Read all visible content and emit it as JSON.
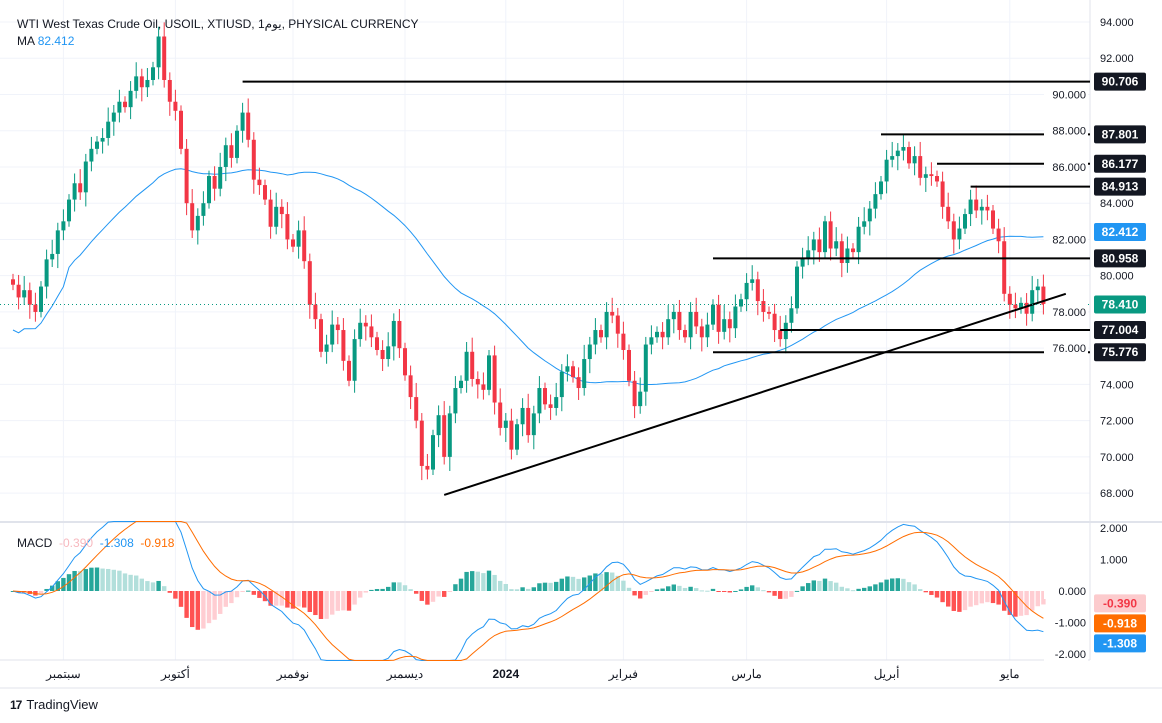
{
  "header": {
    "title": "WTI West Texas Crude Oil, USOIL, XTIUSD, 1يوم, PHYSICAL CURRENCY",
    "ma_label": "MA",
    "ma_value": "82.412",
    "macd_label": "MACD",
    "macd_hist": "-0.390",
    "macd_line": "-1.308",
    "macd_signal": "-0.918"
  },
  "footer": {
    "brand": "TradingView"
  },
  "colors": {
    "up": "#089981",
    "down": "#f23645",
    "ma": "#2196f3",
    "signal": "#ff6d00",
    "hist_up_strong": "#26a69a",
    "hist_up_weak": "#b2dfdb",
    "hist_down_strong": "#ff5252",
    "hist_down_weak": "#ffcdd2"
  },
  "chart_data": {
    "type": "candlestick",
    "title": "WTI West Texas Crude Oil, USOIL, XTIUSD, 1D",
    "ylim": [
      67,
      95
    ],
    "price_ticks": [
      "94.000",
      "92.000",
      "90.000",
      "88.000",
      "86.000",
      "84.000",
      "82.000",
      "80.000",
      "78.000",
      "76.000",
      "74.000",
      "72.000",
      "70.000",
      "68.000"
    ],
    "macd_ticks": [
      "2.000",
      "1.000",
      "0.000",
      "-1.000",
      "-2.000"
    ],
    "x_labels": [
      {
        "label": "سبتمبر",
        "index": 9
      },
      {
        "label": "أكتوبر",
        "index": 29
      },
      {
        "label": "نوفمبر",
        "index": 50
      },
      {
        "label": "ديسمبر",
        "index": 70
      },
      {
        "label": "2024",
        "index": 88
      },
      {
        "label": "فبراير",
        "index": 109
      },
      {
        "label": "مارس",
        "index": 131
      },
      {
        "label": "أبريل",
        "index": 156
      },
      {
        "label": "مايو",
        "index": 178
      }
    ],
    "closes": [
      79.5,
      78.8,
      79.2,
      78.4,
      78.0,
      79.4,
      80.9,
      81.2,
      82.5,
      83.0,
      84.2,
      85.1,
      84.6,
      86.3,
      87.0,
      87.4,
      87.6,
      88.5,
      89.0,
      89.6,
      89.3,
      90.2,
      91.0,
      90.4,
      90.8,
      91.5,
      93.2,
      90.8,
      89.6,
      89.1,
      87.0,
      84.0,
      82.5,
      83.3,
      84.0,
      85.5,
      84.8,
      86.0,
      87.2,
      86.5,
      88.0,
      89.0,
      87.5,
      85.3,
      85.0,
      84.2,
      82.7,
      83.8,
      83.4,
      82.0,
      81.6,
      82.5,
      80.8,
      78.4,
      77.6,
      75.8,
      76.2,
      77.3,
      77.0,
      75.3,
      74.2,
      76.5,
      77.4,
      77.2,
      76.6,
      75.9,
      75.4,
      76.1,
      77.5,
      76.0,
      74.5,
      73.3,
      72.0,
      69.5,
      69.3,
      71.2,
      72.3,
      70.0,
      72.4,
      73.8,
      74.2,
      75.8,
      74.3,
      74.0,
      73.7,
      75.6,
      73.0,
      71.6,
      72.0,
      70.4,
      71.8,
      72.7,
      71.2,
      72.4,
      73.8,
      72.9,
      72.7,
      73.3,
      74.7,
      75.0,
      74.4,
      73.8,
      75.4,
      76.2,
      77.0,
      76.6,
      78.0,
      77.8,
      76.8,
      75.9,
      74.2,
      72.8,
      73.6,
      76.2,
      76.6,
      76.9,
      76.6,
      77.6,
      78.0,
      77.0,
      76.6,
      78.0,
      77.2,
      76.6,
      77.3,
      78.4,
      76.9,
      77.6,
      77.1,
      78.3,
      78.7,
      79.6,
      79.8,
      78.6,
      78.0,
      77.9,
      77.0,
      76.5,
      77.4,
      78.2,
      80.5,
      81.0,
      81.4,
      82.0,
      81.3,
      83.0,
      81.5,
      81.9,
      80.7,
      81.5,
      81.3,
      82.7,
      83.0,
      83.7,
      84.5,
      85.2,
      86.4,
      86.6,
      86.9,
      87.1,
      86.2,
      86.6,
      85.4,
      85.6,
      85.5,
      85.2,
      83.8,
      83.0,
      82.0,
      82.6,
      83.4,
      84.2,
      83.6,
      83.8,
      83.6,
      82.6,
      81.9,
      79.0,
      78.4,
      78.2,
      78.5,
      77.9,
      79.2,
      79.4,
      78.4
    ],
    "last_price": "78.410",
    "ma": {
      "period": 50,
      "last": "82.412"
    },
    "levels": [
      {
        "price": 90.706,
        "label": "90.706",
        "from": 41
      },
      {
        "price": 87.801,
        "label": "87.801",
        "from": 155
      },
      {
        "price": 86.177,
        "label": "86.177",
        "from": 165
      },
      {
        "price": 84.913,
        "label": "84.913",
        "from": 171
      },
      {
        "price": 80.958,
        "label": "80.958",
        "from": 125
      },
      {
        "price": 77.004,
        "label": "77.004",
        "from": 137
      },
      {
        "price": 75.776,
        "label": "75.776",
        "from": 125
      }
    ],
    "trendline": {
      "from": {
        "index": 77,
        "price": 67.9
      },
      "to": {
        "index": 188,
        "price": 79.0
      }
    },
    "macd": {
      "fast": 12,
      "slow": 26,
      "signal": 9,
      "hist": "-0.390",
      "macd": "-1.308",
      "signal_value": "-0.918"
    }
  }
}
